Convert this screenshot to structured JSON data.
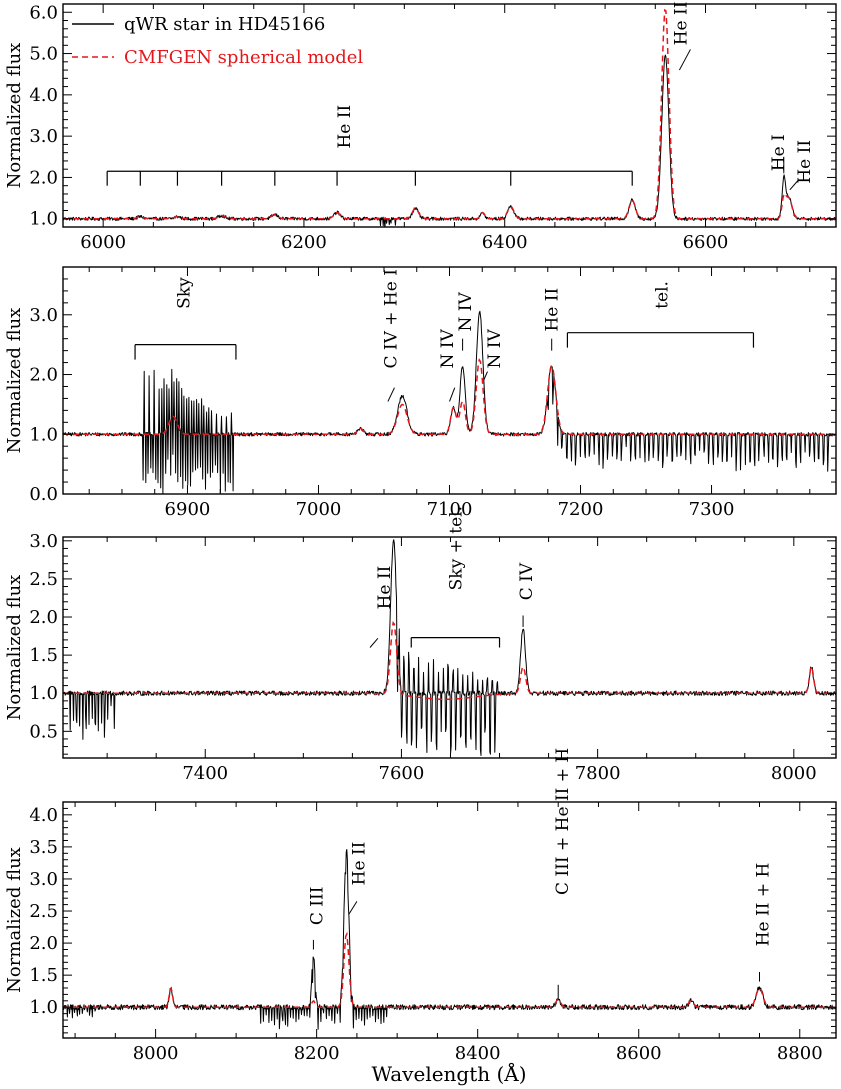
{
  "chart_data": [
    {
      "type": "line",
      "id": "panel-1",
      "ylabel": "Normalized flux",
      "xlabel": "",
      "xlim": [
        5960,
        6730
      ],
      "ylim": [
        0.8,
        6.2
      ],
      "xticks": [
        6000,
        6200,
        6400,
        6600
      ],
      "yticks": [
        1.0,
        2.0,
        3.0,
        4.0,
        5.0,
        6.0
      ],
      "ytick_labels": [
        "1.0",
        "2.0",
        "3.0",
        "4.0",
        "5.0",
        "6.0"
      ],
      "legend": {
        "location": "top-left",
        "entries": [
          {
            "label": "qWR star in HD45166",
            "series": "observed",
            "color": "#000000"
          },
          {
            "label": "CMFGEN spherical model",
            "series": "model",
            "color": "#e3171c"
          }
        ]
      },
      "lines": [
        {
          "center": 6037,
          "amp": 0.05,
          "width": 3
        },
        {
          "center": 6074,
          "amp": 0.05,
          "width": 3
        },
        {
          "center": 6118,
          "amp": 0.08,
          "width": 3
        },
        {
          "center": 6171,
          "amp": 0.1,
          "width": 3
        },
        {
          "center": 6233,
          "amp": 0.15,
          "width": 3
        },
        {
          "center": 6311,
          "amp": 0.25,
          "width": 3
        },
        {
          "center": 6378,
          "amp": 0.15,
          "width": 2
        },
        {
          "center": 6406,
          "amp": 0.3,
          "width": 3
        },
        {
          "center": 6527,
          "amp": 0.45,
          "width": 3
        },
        {
          "center": 6560,
          "amp": 3.95,
          "width": 3.5
        },
        {
          "center": 6678,
          "amp": 0.9,
          "width": 1.8
        },
        {
          "center": 6683,
          "amp": 0.5,
          "width": 3
        }
      ],
      "model_overrides": [
        {
          "center": 6560,
          "amp": 5.1
        },
        {
          "center": 6678,
          "amp": 0.45
        }
      ],
      "noise": 0.04,
      "telluric_bands": [
        {
          "from": 6276,
          "to": 6292,
          "depth": 0.3,
          "spacing": 1.5
        }
      ],
      "annotations": [
        {
          "text": "He II",
          "x": 6575,
          "y": 5.2,
          "rotate": true,
          "leader": [
            [
              6574,
              4.6
            ],
            [
              6585,
              5.1
            ]
          ]
        },
        {
          "text": "He II",
          "x": 6240,
          "y": 2.7,
          "rotate": true
        },
        {
          "text": "He I",
          "x": 6672,
          "y": 2.15,
          "rotate": true,
          "leader": [
            [
              6678,
              2.1
            ],
            [
              6678,
              2.5
            ]
          ]
        },
        {
          "text": "He II",
          "x": 6698,
          "y": 1.85,
          "rotate": true,
          "leader": [
            [
              6684,
              1.7
            ],
            [
              6693,
              1.95
            ]
          ]
        }
      ],
      "brackets": [
        {
          "from": 6004,
          "to": 6527,
          "y": 2.15,
          "drops": [
            6004,
            6037,
            6074,
            6118,
            6171,
            6233,
            6311,
            6406,
            6527
          ],
          "drop_len": 0.35
        }
      ]
    },
    {
      "type": "line",
      "id": "panel-2",
      "ylabel": "Normalized flux",
      "xlabel": "",
      "xlim": [
        6805,
        7395
      ],
      "ylim": [
        0.0,
        3.8
      ],
      "xticks": [
        6900,
        7000,
        7100,
        7200,
        7300
      ],
      "yticks": [
        0.0,
        1.0,
        2.0,
        3.0
      ],
      "ytick_labels": [
        "0.0",
        "1.0",
        "2.0",
        "3.0"
      ],
      "lines": [
        {
          "center": 6889,
          "amp": 0.3,
          "width": 3
        },
        {
          "center": 7032,
          "amp": 0.1,
          "width": 2
        },
        {
          "center": 7064,
          "amp": 0.65,
          "width": 3.5
        },
        {
          "center": 7103,
          "amp": 0.45,
          "width": 2
        },
        {
          "center": 7110,
          "amp": 1.15,
          "width": 2
        },
        {
          "center": 7123,
          "amp": 2.05,
          "width": 2.5
        },
        {
          "center": 7178,
          "amp": 1.15,
          "width": 3
        }
      ],
      "model_overrides": [
        {
          "center": 7123,
          "amp": 1.25
        },
        {
          "center": 7110,
          "amp": 0.55
        },
        {
          "center": 7064,
          "amp": 0.5
        }
      ],
      "noise": 0.03,
      "telluric_bands": [
        {
          "from": 6866,
          "to": 6935,
          "depth": 1.0,
          "spacing": 1.9,
          "emission": 1.15
        },
        {
          "from": 7175,
          "to": 7390,
          "depth": 0.7,
          "spacing": 3.5
        }
      ],
      "annotations": [
        {
          "text": "Sky",
          "x": 6897,
          "y": 3.1,
          "rotate": true
        },
        {
          "text": "C IV + He I",
          "x": 7055,
          "y": 2.1,
          "rotate": true,
          "leader": [
            [
              7053,
              1.55
            ],
            [
              7058,
              1.78
            ]
          ]
        },
        {
          "text": "N IV",
          "x": 7098,
          "y": 2.1,
          "rotate": true,
          "leader": [
            [
              7100,
              1.55
            ],
            [
              7104,
              1.78
            ]
          ]
        },
        {
          "text": "N IV",
          "x": 7112,
          "y": 2.72,
          "rotate": true,
          "leader": [
            [
              7110,
              2.4
            ],
            [
              7110,
              2.6
            ]
          ]
        },
        {
          "text": "N IV",
          "x": 7134,
          "y": 2.1,
          "rotate": true,
          "leader": [
            [
              7126,
              1.9
            ],
            [
              7129,
              2.05
            ]
          ]
        },
        {
          "text": "He II",
          "x": 7178,
          "y": 2.72,
          "rotate": true,
          "leader": [
            [
              7178,
              2.4
            ],
            [
              7178,
              2.6
            ]
          ]
        },
        {
          "text": "tel.",
          "x": 7262,
          "y": 3.1,
          "rotate": true
        }
      ],
      "brackets": [
        {
          "from": 6860,
          "to": 6937,
          "y": 2.5,
          "drops": [
            6860,
            6937
          ],
          "drop_len": 0.25
        },
        {
          "from": 7190,
          "to": 7332,
          "y": 2.7,
          "drops": [
            7190,
            7332
          ],
          "drop_len": 0.25
        }
      ]
    },
    {
      "type": "line",
      "id": "panel-3",
      "ylabel": "Normalized flux",
      "xlabel": "",
      "xlim": [
        7255,
        8043
      ],
      "ylim": [
        0.15,
        3.05
      ],
      "xticks": [
        7400,
        7600,
        7800,
        8000
      ],
      "yticks": [
        0.5,
        1.0,
        1.5,
        2.0,
        2.5,
        3.0
      ],
      "ytick_labels": [
        "0.5",
        "1.0",
        "1.5",
        "2.0",
        "2.5",
        "3.0"
      ],
      "lines": [
        {
          "center": 7592,
          "amp": 2.0,
          "width": 3
        },
        {
          "center": 7724,
          "amp": 0.85,
          "width": 2.5
        },
        {
          "center": 8018,
          "amp": 0.35,
          "width": 2
        }
      ],
      "model_overrides": [
        {
          "center": 7592,
          "amp": 0.95
        },
        {
          "center": 7724,
          "amp": 0.35
        }
      ],
      "model_dips": [
        {
          "center": 7645,
          "amp": -0.08,
          "width": 30
        }
      ],
      "noise": 0.03,
      "telluric_bands": [
        {
          "from": 7262,
          "to": 7310,
          "depth": 0.75,
          "spacing": 3.2
        },
        {
          "from": 7595,
          "to": 7700,
          "depth": 0.85,
          "spacing": 5,
          "emission": 0.6
        }
      ],
      "annotations": [
        {
          "text": "He II",
          "x": 7582,
          "y": 2.1,
          "rotate": true,
          "leader": [
            [
              7568,
              1.6
            ],
            [
              7576,
              1.72
            ]
          ]
        },
        {
          "text": "Sky + tel.",
          "x": 7655,
          "y": 2.35,
          "rotate": true
        },
        {
          "text": "C IV",
          "x": 7727,
          "y": 2.22,
          "rotate": true,
          "leader": [
            [
              7724,
              1.87
            ],
            [
              7724,
              2.02
            ]
          ]
        }
      ],
      "brackets": [
        {
          "from": 7610,
          "to": 7700,
          "y": 1.73,
          "drops": [
            7610,
            7700
          ],
          "drop_len": 0.13
        }
      ]
    },
    {
      "type": "line",
      "id": "panel-4",
      "ylabel": "Normalized flux",
      "xlabel": "Wavelength (Å)",
      "xlim": [
        7885,
        8845
      ],
      "ylim": [
        0.52,
        4.2
      ],
      "xticks": [
        8000,
        8200,
        8400,
        8600,
        8800
      ],
      "yticks": [
        1.0,
        1.5,
        2.0,
        2.5,
        3.0,
        3.5,
        4.0
      ],
      "ytick_labels": [
        "1.0",
        "1.5",
        "2.0",
        "2.5",
        "3.0",
        "3.5",
        "4.0"
      ],
      "lines": [
        {
          "center": 8019,
          "amp": 0.3,
          "width": 2
        },
        {
          "center": 8196,
          "amp": 0.8,
          "width": 2
        },
        {
          "center": 8237,
          "amp": 2.45,
          "width": 3
        },
        {
          "center": 8500,
          "amp": 0.12,
          "width": 3
        },
        {
          "center": 8665,
          "amp": 0.1,
          "width": 3
        },
        {
          "center": 8750,
          "amp": 0.3,
          "width": 4
        }
      ],
      "model_overrides": [
        {
          "center": 8237,
          "amp": 1.15
        },
        {
          "center": 8196,
          "amp": 0.1
        }
      ],
      "noise": 0.04,
      "telluric_bands": [
        {
          "from": 7890,
          "to": 7925,
          "depth": 0.2,
          "spacing": 3.1
        },
        {
          "from": 8130,
          "to": 8290,
          "depth": 0.4,
          "spacing": 3.4
        }
      ],
      "annotations": [
        {
          "text": "C III",
          "x": 8200,
          "y": 2.28,
          "rotate": true,
          "leader": [
            [
              8196,
              1.9
            ],
            [
              8196,
              2.05
            ]
          ]
        },
        {
          "text": "He II",
          "x": 8252,
          "y": 2.9,
          "rotate": true,
          "leader": [
            [
              8240,
              2.45
            ],
            [
              8250,
              2.65
            ]
          ]
        },
        {
          "text": "C III + He II + H",
          "x": 8505,
          "y": 2.75,
          "rotate": true,
          "leader": [
            [
              8500,
              1.12
            ],
            [
              8500,
              1.35
            ]
          ]
        },
        {
          "text": "He II + H",
          "x": 8754,
          "y": 1.95,
          "rotate": true,
          "leader": [
            [
              8750,
              1.4
            ],
            [
              8750,
              1.55
            ]
          ]
        }
      ]
    }
  ]
}
